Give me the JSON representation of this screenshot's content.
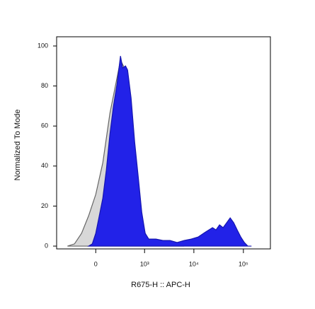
{
  "chart_data": {
    "type": "area",
    "xscale": "asinh",
    "xlabel": "R675-H :: APC-H",
    "ylabel": "Normalized To Mode",
    "xlim": [
      -627,
      351000
    ],
    "xticks": [
      0,
      {
        "value": 1000,
        "label": "10³"
      },
      {
        "value": 10000,
        "label": "10⁴"
      },
      {
        "value": 100000,
        "label": "10⁵"
      }
    ],
    "ylim": [
      -1.4,
      104.6
    ],
    "yticks": [
      0,
      20,
      40,
      60,
      80,
      100
    ],
    "series": [
      {
        "color": "#d8d8d8",
        "x": [
          -361,
          -242,
          -148,
          -70,
          0,
          70,
          148,
          242,
          297,
          361,
          435,
          520,
          621,
          736,
          874,
          1030,
          1223,
          1710,
          3300,
          6370
        ],
        "values": [
          0,
          1.1,
          6.4,
          15.2,
          25.8,
          41.7,
          66.4,
          84.1,
          93,
          89.4,
          84.1,
          66.4,
          45.2,
          27.6,
          13.4,
          6.4,
          2.8,
          1.1,
          0.4,
          0
        ]
      },
      {
        "color": "#2222e8",
        "x": [
          -70,
          -34,
          0,
          34,
          70,
          107,
          148,
          192,
          242,
          297,
          335,
          391,
          435,
          520,
          621,
          736,
          874,
          1030,
          1223,
          1710,
          2374,
          3300,
          4580,
          6370,
          8860,
          12300,
          17100,
          23800,
          28000,
          33000,
          38900,
          46000,
          54100,
          63700,
          75200,
          88400,
          104500,
          123000,
          145700
        ],
        "values": [
          0,
          1.1,
          6.4,
          15,
          24,
          38,
          56,
          70,
          81,
          95,
          89,
          90,
          88,
          74,
          52,
          35,
          17,
          6.4,
          3.5,
          3.5,
          2.8,
          2.8,
          1.8,
          2.8,
          3.5,
          4.6,
          7,
          9.2,
          8.1,
          10.6,
          9.2,
          11.7,
          14.1,
          11.7,
          8,
          4.6,
          1.8,
          0,
          0
        ]
      }
    ]
  }
}
